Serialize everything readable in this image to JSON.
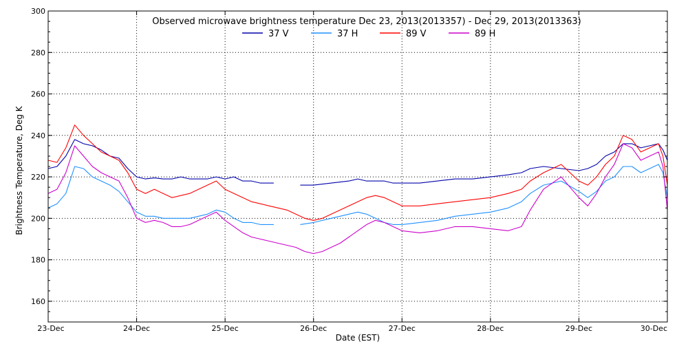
{
  "chart_data": {
    "type": "line",
    "title": "Observed microwave brightness temperature Dec 23, 2013(2013357) - Dec 29, 2013(2013363)",
    "xlabel": "Date (EST)",
    "ylabel": "Brightness Temperature, Deg K",
    "x_ticks": [
      "23-Dec",
      "24-Dec",
      "25-Dec",
      "26-Dec",
      "27-Dec",
      "28-Dec",
      "29-Dec",
      "30-Dec"
    ],
    "y_ticks": [
      160,
      180,
      200,
      220,
      240,
      260,
      280,
      300
    ],
    "xlim": [
      0,
      7
    ],
    "ylim": [
      150,
      300
    ],
    "grid": true,
    "legend_position": "top-center",
    "series": [
      {
        "name": "37 V",
        "color": "#0000aa",
        "points": [
          [
            0.0,
            224
          ],
          [
            0.1,
            225
          ],
          [
            0.2,
            230
          ],
          [
            0.3,
            238
          ],
          [
            0.4,
            236
          ],
          [
            0.5,
            235
          ],
          [
            0.6,
            233
          ],
          [
            0.7,
            230
          ],
          [
            0.8,
            229
          ],
          [
            0.9,
            224
          ],
          [
            1.0,
            220
          ],
          [
            1.1,
            219
          ],
          [
            1.2,
            219.5
          ],
          [
            1.3,
            219
          ],
          [
            1.4,
            219
          ],
          [
            1.5,
            220
          ],
          [
            1.6,
            219
          ],
          [
            1.7,
            219
          ],
          [
            1.8,
            219
          ],
          [
            1.9,
            220
          ],
          [
            2.0,
            219
          ],
          [
            2.1,
            220
          ],
          [
            2.2,
            218
          ],
          [
            2.3,
            218
          ],
          [
            2.4,
            217
          ],
          [
            2.5,
            217
          ],
          [
            2.55,
            217
          ],
          [
            null,
            null
          ],
          [
            2.85,
            216
          ],
          [
            3.0,
            216
          ],
          [
            3.2,
            217
          ],
          [
            3.4,
            218
          ],
          [
            3.5,
            219
          ],
          [
            3.6,
            218
          ],
          [
            3.7,
            218
          ],
          [
            3.8,
            218
          ],
          [
            3.9,
            217
          ],
          [
            4.0,
            217
          ],
          [
            4.2,
            217
          ],
          [
            4.4,
            218
          ],
          [
            4.6,
            219
          ],
          [
            4.8,
            219
          ],
          [
            5.0,
            220
          ],
          [
            5.2,
            221
          ],
          [
            5.35,
            222
          ],
          [
            5.45,
            224
          ],
          [
            5.6,
            225
          ],
          [
            5.8,
            224
          ],
          [
            6.0,
            223
          ],
          [
            6.1,
            224
          ],
          [
            6.2,
            226
          ],
          [
            6.3,
            230
          ],
          [
            6.4,
            232
          ],
          [
            6.5,
            236
          ],
          [
            6.6,
            236
          ],
          [
            6.7,
            234
          ],
          [
            6.8,
            235
          ],
          [
            6.9,
            236
          ],
          [
            6.95,
            233
          ],
          [
            7.0,
            228
          ]
        ]
      },
      {
        "name": "37 H",
        "color": "#1e90ff",
        "points": [
          [
            0.0,
            205
          ],
          [
            0.1,
            207
          ],
          [
            0.2,
            212
          ],
          [
            0.3,
            225
          ],
          [
            0.4,
            224
          ],
          [
            0.5,
            220
          ],
          [
            0.6,
            218
          ],
          [
            0.7,
            216
          ],
          [
            0.8,
            213
          ],
          [
            0.9,
            208
          ],
          [
            1.0,
            203
          ],
          [
            1.1,
            201
          ],
          [
            1.2,
            201
          ],
          [
            1.3,
            200
          ],
          [
            1.4,
            200
          ],
          [
            1.5,
            200
          ],
          [
            1.6,
            200
          ],
          [
            1.7,
            201
          ],
          [
            1.8,
            202
          ],
          [
            1.9,
            204
          ],
          [
            2.0,
            203
          ],
          [
            2.1,
            200
          ],
          [
            2.2,
            198
          ],
          [
            2.3,
            198
          ],
          [
            2.4,
            197
          ],
          [
            2.5,
            197
          ],
          [
            2.55,
            197
          ],
          [
            null,
            null
          ],
          [
            2.85,
            197
          ],
          [
            3.0,
            198
          ],
          [
            3.2,
            200
          ],
          [
            3.4,
            202
          ],
          [
            3.5,
            203
          ],
          [
            3.6,
            202
          ],
          [
            3.7,
            200
          ],
          [
            3.8,
            198
          ],
          [
            3.9,
            197
          ],
          [
            4.0,
            197
          ],
          [
            4.2,
            198
          ],
          [
            4.4,
            199
          ],
          [
            4.6,
            201
          ],
          [
            4.8,
            202
          ],
          [
            5.0,
            203
          ],
          [
            5.2,
            205
          ],
          [
            5.35,
            208
          ],
          [
            5.45,
            212
          ],
          [
            5.6,
            216
          ],
          [
            5.8,
            218
          ],
          [
            6.0,
            213
          ],
          [
            6.1,
            210
          ],
          [
            6.2,
            213
          ],
          [
            6.3,
            218
          ],
          [
            6.4,
            220
          ],
          [
            6.5,
            225
          ],
          [
            6.6,
            225
          ],
          [
            6.7,
            222
          ],
          [
            6.8,
            224
          ],
          [
            6.9,
            226
          ],
          [
            6.95,
            222
          ],
          [
            7.0,
            210
          ]
        ]
      },
      {
        "name": "89 V",
        "color": "#ff0000",
        "points": [
          [
            0.0,
            228
          ],
          [
            0.1,
            227
          ],
          [
            0.2,
            234
          ],
          [
            0.3,
            245
          ],
          [
            0.4,
            240
          ],
          [
            0.5,
            236
          ],
          [
            0.6,
            232
          ],
          [
            0.7,
            230
          ],
          [
            0.8,
            228
          ],
          [
            0.9,
            222
          ],
          [
            1.0,
            214
          ],
          [
            1.1,
            212
          ],
          [
            1.2,
            214
          ],
          [
            1.3,
            212
          ],
          [
            1.4,
            210
          ],
          [
            1.5,
            211
          ],
          [
            1.6,
            212
          ],
          [
            1.7,
            214
          ],
          [
            1.8,
            216
          ],
          [
            1.9,
            218
          ],
          [
            2.0,
            214
          ],
          [
            2.1,
            212
          ],
          [
            2.2,
            210
          ],
          [
            2.3,
            208
          ],
          [
            2.4,
            207
          ],
          [
            2.5,
            206
          ],
          [
            2.6,
            205
          ],
          [
            2.7,
            204
          ],
          [
            2.8,
            202
          ],
          [
            2.9,
            200
          ],
          [
            3.0,
            199
          ],
          [
            3.1,
            200
          ],
          [
            3.2,
            202
          ],
          [
            3.3,
            204
          ],
          [
            3.4,
            206
          ],
          [
            3.5,
            208
          ],
          [
            3.6,
            210
          ],
          [
            3.7,
            211
          ],
          [
            3.8,
            210
          ],
          [
            3.9,
            208
          ],
          [
            4.0,
            206
          ],
          [
            4.2,
            206
          ],
          [
            4.4,
            207
          ],
          [
            4.6,
            208
          ],
          [
            4.8,
            209
          ],
          [
            5.0,
            210
          ],
          [
            5.2,
            212
          ],
          [
            5.35,
            214
          ],
          [
            5.45,
            218
          ],
          [
            5.6,
            222
          ],
          [
            5.8,
            226
          ],
          [
            6.0,
            218
          ],
          [
            6.1,
            216
          ],
          [
            6.2,
            220
          ],
          [
            6.3,
            226
          ],
          [
            6.4,
            230
          ],
          [
            6.5,
            240
          ],
          [
            6.6,
            238
          ],
          [
            6.7,
            232
          ],
          [
            6.8,
            234
          ],
          [
            6.9,
            236
          ],
          [
            6.95,
            230
          ],
          [
            7.0,
            216
          ]
        ]
      },
      {
        "name": "89 H",
        "color": "#cc00cc",
        "points": [
          [
            0.0,
            212
          ],
          [
            0.1,
            214
          ],
          [
            0.2,
            222
          ],
          [
            0.3,
            235
          ],
          [
            0.4,
            230
          ],
          [
            0.5,
            225
          ],
          [
            0.6,
            222
          ],
          [
            0.7,
            220
          ],
          [
            0.8,
            218
          ],
          [
            0.9,
            210
          ],
          [
            1.0,
            200
          ],
          [
            1.1,
            198
          ],
          [
            1.2,
            199
          ],
          [
            1.3,
            198
          ],
          [
            1.4,
            196
          ],
          [
            1.5,
            196
          ],
          [
            1.6,
            197
          ],
          [
            1.7,
            199
          ],
          [
            1.8,
            201
          ],
          [
            1.9,
            203
          ],
          [
            2.0,
            199
          ],
          [
            2.1,
            196
          ],
          [
            2.2,
            193
          ],
          [
            2.3,
            191
          ],
          [
            2.4,
            190
          ],
          [
            2.5,
            189
          ],
          [
            2.6,
            188
          ],
          [
            2.7,
            187
          ],
          [
            2.8,
            186
          ],
          [
            2.9,
            184
          ],
          [
            3.0,
            183
          ],
          [
            3.1,
            184
          ],
          [
            3.2,
            186
          ],
          [
            3.3,
            188
          ],
          [
            3.4,
            191
          ],
          [
            3.5,
            194
          ],
          [
            3.6,
            197
          ],
          [
            3.7,
            199
          ],
          [
            3.8,
            198
          ],
          [
            3.9,
            196
          ],
          [
            4.0,
            194
          ],
          [
            4.2,
            193
          ],
          [
            4.4,
            194
          ],
          [
            4.6,
            196
          ],
          [
            4.8,
            196
          ],
          [
            5.0,
            195
          ],
          [
            5.2,
            194
          ],
          [
            5.35,
            196
          ],
          [
            5.45,
            204
          ],
          [
            5.6,
            214
          ],
          [
            5.8,
            220
          ],
          [
            6.0,
            210
          ],
          [
            6.1,
            206
          ],
          [
            6.2,
            212
          ],
          [
            6.3,
            220
          ],
          [
            6.4,
            226
          ],
          [
            6.5,
            236
          ],
          [
            6.6,
            234
          ],
          [
            6.7,
            228
          ],
          [
            6.8,
            230
          ],
          [
            6.9,
            232
          ],
          [
            6.95,
            225
          ],
          [
            7.0,
            204
          ]
        ]
      }
    ]
  }
}
